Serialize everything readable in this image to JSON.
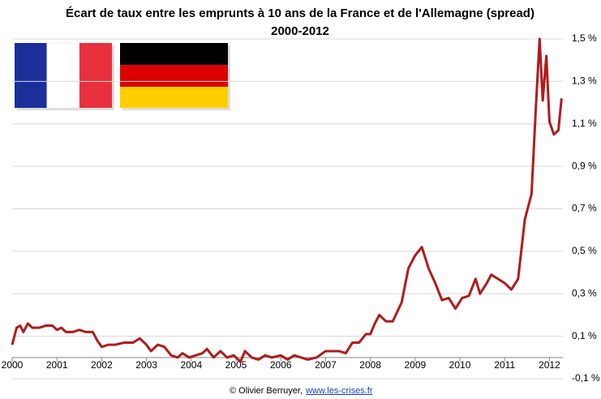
{
  "chart_data": {
    "type": "line",
    "title": "Écart de taux entre les emprunts à 10 ans de la France et de l'Allemagne (spread)",
    "subtitle": "2000-2012",
    "x": [
      2000.0,
      2000.1,
      2000.18,
      2000.25,
      2000.35,
      2000.45,
      2000.6,
      2000.75,
      2000.9,
      2001.0,
      2001.1,
      2001.2,
      2001.35,
      2001.5,
      2001.65,
      2001.8,
      2001.9,
      2002.0,
      2002.15,
      2002.3,
      2002.5,
      2002.7,
      2002.85,
      2003.0,
      2003.1,
      2003.25,
      2003.4,
      2003.55,
      2003.7,
      2003.8,
      2003.95,
      2004.1,
      2004.25,
      2004.35,
      2004.5,
      2004.65,
      2004.8,
      2004.95,
      2005.1,
      2005.2,
      2005.35,
      2005.5,
      2005.65,
      2005.8,
      2006.0,
      2006.15,
      2006.3,
      2006.45,
      2006.6,
      2006.8,
      2007.0,
      2007.15,
      2007.3,
      2007.45,
      2007.6,
      2007.75,
      2007.9,
      2008.0,
      2008.1,
      2008.2,
      2008.35,
      2008.5,
      2008.7,
      2008.85,
      2009.0,
      2009.15,
      2009.3,
      2009.45,
      2009.6,
      2009.75,
      2009.9,
      2010.05,
      2010.2,
      2010.35,
      2010.45,
      2010.6,
      2010.7,
      2010.85,
      2011.0,
      2011.15,
      2011.3,
      2011.45,
      2011.6,
      2011.7,
      2011.78,
      2011.85,
      2011.93,
      2012.0,
      2012.1,
      2012.2,
      2012.27
    ],
    "series": [
      {
        "name": "Spread",
        "color": "#b01c1c",
        "values": [
          0.06,
          0.14,
          0.15,
          0.12,
          0.16,
          0.14,
          0.14,
          0.15,
          0.15,
          0.13,
          0.14,
          0.12,
          0.12,
          0.13,
          0.12,
          0.12,
          0.08,
          0.05,
          0.06,
          0.06,
          0.07,
          0.07,
          0.09,
          0.06,
          0.03,
          0.06,
          0.05,
          0.01,
          0.0,
          0.02,
          0.0,
          0.01,
          0.02,
          0.04,
          0.0,
          0.03,
          0.0,
          0.01,
          -0.02,
          0.03,
          0.0,
          -0.01,
          0.01,
          0.0,
          0.01,
          -0.01,
          0.01,
          0.0,
          -0.01,
          0.0,
          0.03,
          0.03,
          0.03,
          0.02,
          0.07,
          0.07,
          0.11,
          0.11,
          0.16,
          0.2,
          0.17,
          0.17,
          0.26,
          0.42,
          0.48,
          0.52,
          0.42,
          0.35,
          0.27,
          0.28,
          0.23,
          0.28,
          0.29,
          0.37,
          0.3,
          0.35,
          0.39,
          0.37,
          0.35,
          0.32,
          0.37,
          0.65,
          0.77,
          1.19,
          1.5,
          1.21,
          1.42,
          1.11,
          1.05,
          1.07,
          1.22
        ]
      }
    ],
    "xlim": [
      2000,
      2012.3
    ],
    "xticks": [
      2000,
      2001,
      2002,
      2003,
      2004,
      2005,
      2006,
      2007,
      2008,
      2009,
      2010,
      2011,
      2012
    ],
    "ylim": [
      -0.1,
      1.5
    ],
    "yticks": [
      {
        "value": -0.1,
        "label": "-0,1 %"
      },
      {
        "value": 0.1,
        "label": "0,1 %"
      },
      {
        "value": 0.3,
        "label": "0,3 %"
      },
      {
        "value": 0.5,
        "label": "0,5 %"
      },
      {
        "value": 0.7,
        "label": "0,7 %"
      },
      {
        "value": 0.9,
        "label": "0,9 %"
      },
      {
        "value": 1.1,
        "label": "1,1 %"
      },
      {
        "value": 1.3,
        "label": "1,3 %"
      },
      {
        "value": 1.5,
        "label": "1,5 %"
      }
    ],
    "grid": true
  },
  "footer": {
    "credit": "© Olivier Berruyer,",
    "link": "www.les-crises.fr"
  }
}
